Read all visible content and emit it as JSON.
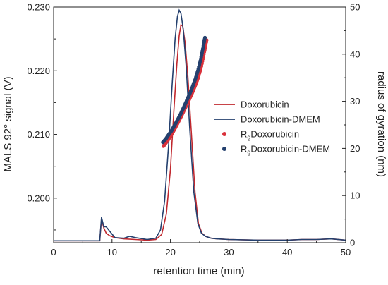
{
  "chart_data": {
    "type": "line",
    "xlabel": "retention time (min)",
    "ylabel": "MALS 92° signal (V)",
    "y2label": "radius of gyration (nm)",
    "xlim": [
      0,
      50
    ],
    "ylim": [
      0.193,
      0.23
    ],
    "y2lim": [
      0,
      50
    ],
    "xticks": [
      0,
      10,
      20,
      30,
      40,
      50
    ],
    "yticks": [
      0.2,
      0.21,
      0.22,
      0.23
    ],
    "y2ticks": [
      0,
      10,
      20,
      30,
      40,
      50
    ],
    "ytick_labels": [
      "0.200",
      "0.210",
      "0.220",
      "0.230"
    ],
    "grid": false,
    "legend_position": "right",
    "series": [
      {
        "name": "Doxorubicin",
        "kind": "line",
        "axis": "left",
        "color": "#c0282e",
        "x": [
          0,
          7.9,
          8.2,
          8.6,
          9.0,
          9.6,
          10.5,
          12,
          14,
          16,
          17.5,
          18.5,
          19.3,
          20.0,
          20.6,
          21.1,
          21.5,
          21.8,
          22.1,
          22.5,
          23.0,
          23.6,
          24.2,
          24.8,
          25.4,
          26.0,
          27.0,
          28,
          30,
          35,
          40,
          42.5,
          45,
          47.5,
          50
        ],
        "y": [
          0.1933,
          0.1933,
          0.1967,
          0.1953,
          0.1945,
          0.1941,
          0.1938,
          0.1936,
          0.1935,
          0.1934,
          0.1935,
          0.1943,
          0.1975,
          0.2045,
          0.214,
          0.221,
          0.2255,
          0.2272,
          0.227,
          0.2245,
          0.219,
          0.21,
          0.201,
          0.196,
          0.1945,
          0.194,
          0.1937,
          0.1936,
          0.1935,
          0.1934,
          0.1934,
          0.1935,
          0.1935,
          0.1936,
          0.1934
        ]
      },
      {
        "name": "Doxorubicin-DMEM",
        "kind": "line",
        "axis": "left",
        "color": "#24406e",
        "x": [
          0,
          7.9,
          8.2,
          8.6,
          9.0,
          9.6,
          10.5,
          12,
          13,
          14,
          16,
          17.5,
          18.3,
          19.0,
          19.7,
          20.3,
          20.8,
          21.2,
          21.5,
          21.8,
          22.2,
          22.7,
          23.3,
          24.0,
          24.7,
          25.3,
          26.0,
          27.0,
          28,
          30,
          35,
          40,
          42.5,
          45,
          47.5,
          50
        ],
        "y": [
          0.1933,
          0.1933,
          0.197,
          0.1955,
          0.1955,
          0.1948,
          0.1938,
          0.1937,
          0.194,
          0.1938,
          0.1935,
          0.1937,
          0.195,
          0.1995,
          0.2085,
          0.218,
          0.225,
          0.2285,
          0.2295,
          0.229,
          0.2265,
          0.2205,
          0.211,
          0.201,
          0.196,
          0.1945,
          0.194,
          0.1937,
          0.1936,
          0.1935,
          0.1934,
          0.1934,
          0.1935,
          0.1935,
          0.1936,
          0.1934
        ]
      },
      {
        "name": "Doxorubicin",
        "name_prefix": "R",
        "name_sub": "g",
        "kind": "scatter",
        "axis": "right",
        "color": "#d9303a",
        "x": [
          18.8,
          19.3,
          19.8,
          20.3,
          20.8,
          21.3,
          21.8,
          22.3,
          22.8,
          23.3,
          23.8,
          24.3,
          24.8,
          25.3,
          25.8,
          26.2
        ],
        "y": [
          20.5,
          21.3,
          22.2,
          23.2,
          24.3,
          25.5,
          26.7,
          28.0,
          29.3,
          30.6,
          32.0,
          33.5,
          35.2,
          37.5,
          40.5,
          43.0
        ]
      },
      {
        "name": "Doxorubicin-DMEM",
        "name_prefix": "R",
        "name_sub": "g",
        "kind": "scatter",
        "axis": "right",
        "color": "#24406e",
        "x": [
          18.7,
          19.2,
          19.7,
          20.2,
          20.7,
          21.2,
          21.7,
          22.2,
          22.7,
          23.2,
          23.7,
          24.2,
          24.7,
          25.2,
          25.6,
          25.9
        ],
        "y": [
          21.3,
          22.0,
          22.9,
          23.8,
          24.9,
          26.0,
          27.2,
          28.5,
          29.9,
          31.3,
          32.8,
          34.5,
          36.5,
          39.0,
          41.5,
          43.5
        ]
      }
    ]
  }
}
